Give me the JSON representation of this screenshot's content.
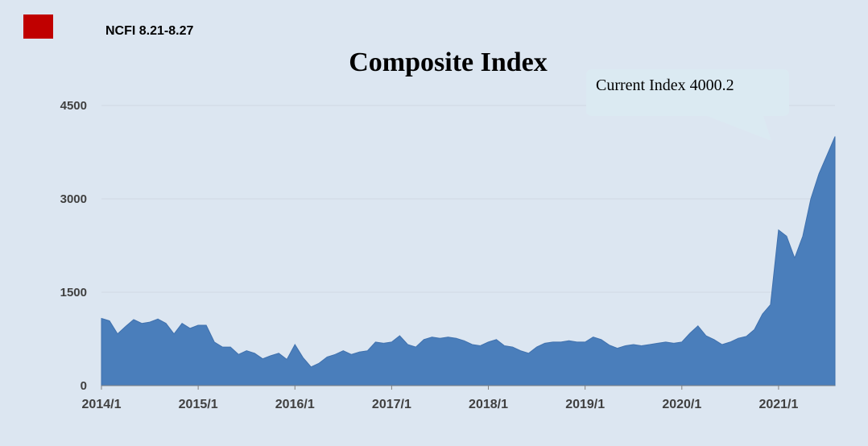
{
  "header": {
    "label": "NCFI 8.21-8.27",
    "badge_color": "#c00000"
  },
  "callout": {
    "text": "Current Index 4000.2"
  },
  "chart_data": {
    "type": "area",
    "title": "Composite Index",
    "xlabel": "",
    "ylabel": "",
    "x_ticks": [
      "2014/1",
      "2015/1",
      "2016/1",
      "2017/1",
      "2018/1",
      "2019/1",
      "2020/1",
      "2021/1"
    ],
    "y_ticks": [
      0,
      1500,
      3000,
      4500
    ],
    "ylim": [
      0,
      4500
    ],
    "xlim": [
      "2014-01",
      "2021-08"
    ],
    "grid": true,
    "legend": "none",
    "fill_color": "#4a7ebb",
    "series": [
      {
        "x": [
          "2014-01",
          "2014-02",
          "2014-03",
          "2014-04",
          "2014-05",
          "2014-06",
          "2014-07",
          "2014-08",
          "2014-09",
          "2014-10",
          "2014-11",
          "2014-12",
          "2015-01",
          "2015-02",
          "2015-03",
          "2015-04",
          "2015-05",
          "2015-06",
          "2015-07",
          "2015-08",
          "2015-09",
          "2015-10",
          "2015-11",
          "2015-12",
          "2016-01",
          "2016-02",
          "2016-03",
          "2016-04",
          "2016-05",
          "2016-06",
          "2016-07",
          "2016-08",
          "2016-09",
          "2016-10",
          "2016-11",
          "2016-12",
          "2017-01",
          "2017-02",
          "2017-03",
          "2017-04",
          "2017-05",
          "2017-06",
          "2017-07",
          "2017-08",
          "2017-09",
          "2017-10",
          "2017-11",
          "2017-12",
          "2018-01",
          "2018-02",
          "2018-03",
          "2018-04",
          "2018-05",
          "2018-06",
          "2018-07",
          "2018-08",
          "2018-09",
          "2018-10",
          "2018-11",
          "2018-12",
          "2019-01",
          "2019-02",
          "2019-03",
          "2019-04",
          "2019-05",
          "2019-06",
          "2019-07",
          "2019-08",
          "2019-09",
          "2019-10",
          "2019-11",
          "2019-12",
          "2020-01",
          "2020-02",
          "2020-03",
          "2020-04",
          "2020-05",
          "2020-06",
          "2020-07",
          "2020-08",
          "2020-09",
          "2020-10",
          "2020-11",
          "2020-12",
          "2021-01",
          "2021-02",
          "2021-03",
          "2021-04",
          "2021-05",
          "2021-06",
          "2021-07",
          "2021-08"
        ],
        "values": [
          1080,
          1040,
          830,
          950,
          1060,
          1000,
          1020,
          1070,
          1000,
          830,
          1000,
          920,
          970,
          970,
          700,
          620,
          620,
          500,
          560,
          520,
          430,
          480,
          520,
          420,
          660,
          450,
          300,
          360,
          460,
          500,
          560,
          500,
          540,
          560,
          700,
          680,
          700,
          800,
          660,
          620,
          740,
          780,
          760,
          780,
          760,
          720,
          660,
          640,
          700,
          740,
          640,
          620,
          560,
          520,
          620,
          680,
          700,
          700,
          720,
          700,
          700,
          780,
          740,
          650,
          600,
          640,
          660,
          640,
          660,
          680,
          700,
          680,
          700,
          840,
          960,
          800,
          740,
          660,
          700,
          760,
          790,
          900,
          1150,
          1300,
          2500,
          2400,
          2050,
          2400,
          3000,
          3400,
          3700,
          4000.2
        ]
      }
    ]
  }
}
